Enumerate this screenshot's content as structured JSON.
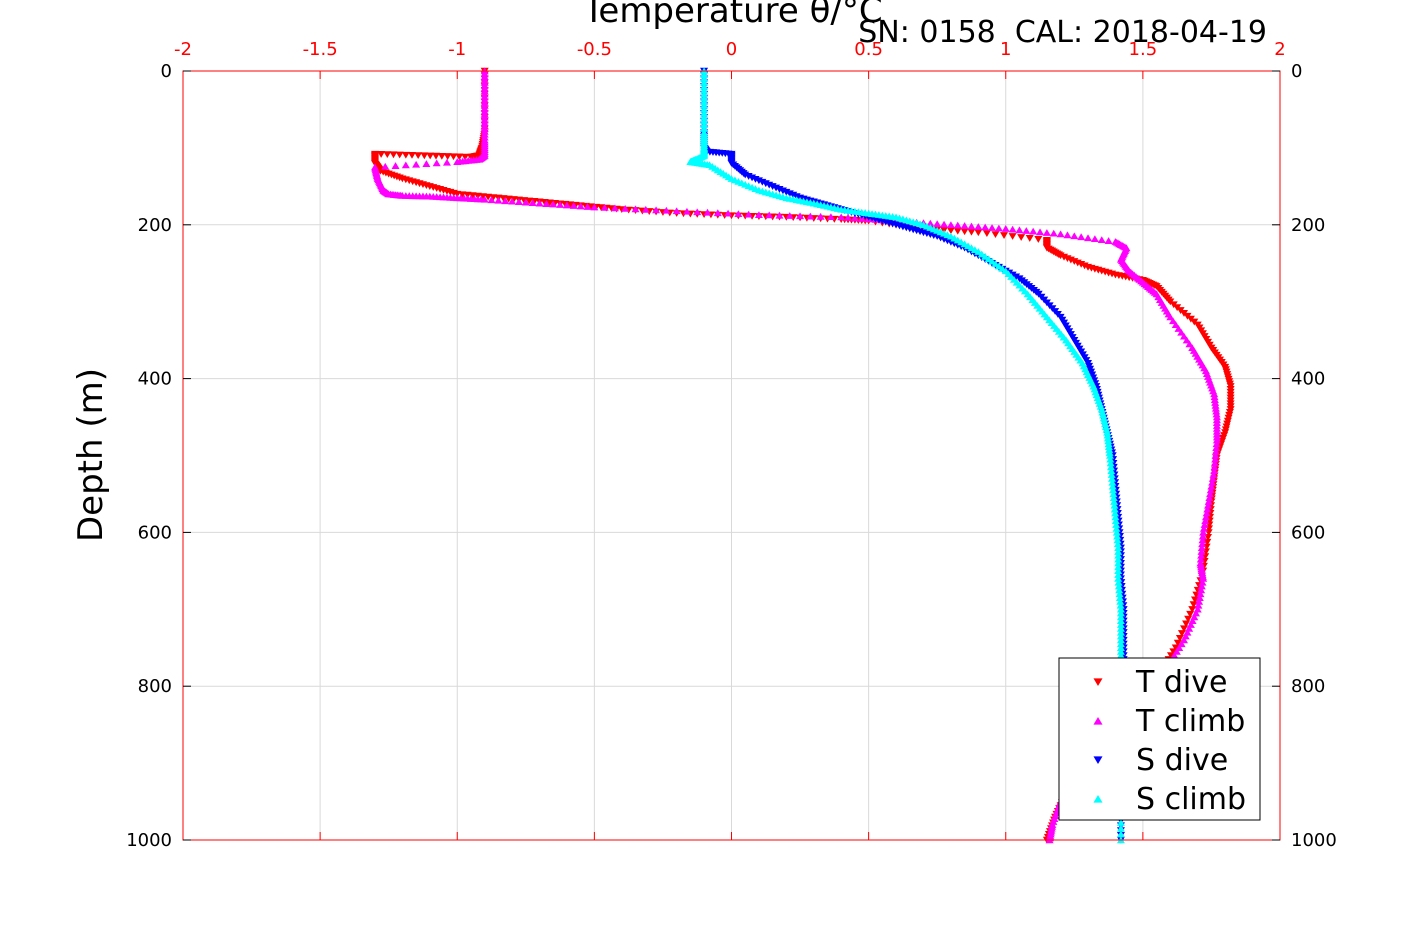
{
  "colors": {
    "axis_top": "#ff0000",
    "axis_side": "#000000",
    "grid": "#d9d9d9",
    "t_dive": "#ff0000",
    "t_climb": "#ff00ff",
    "s_dive": "#0000ff",
    "s_climb": "#00ffff"
  },
  "caption": "SN: 0158  CAL: 2018-04-19",
  "chart_data": {
    "type": "scatter",
    "title": "",
    "xlabel": "Temperature θ/°C",
    "ylabel": "Depth (m)",
    "xlim": [
      -2,
      2
    ],
    "ylim": [
      0,
      1000
    ],
    "y_reversed": true,
    "x_axis_position": "top",
    "x_ticks": [
      -2,
      -1.5,
      -1,
      -0.5,
      0,
      0.5,
      1,
      1.5,
      2
    ],
    "x_tick_labels": [
      "-2",
      "-1.5",
      "-1",
      "-0.5",
      "0",
      "0.5",
      "1",
      "1.5",
      "2"
    ],
    "y_ticks": [
      0,
      200,
      400,
      600,
      800,
      1000
    ],
    "y_tick_labels": [
      "0",
      "200",
      "400",
      "600",
      "800",
      "1000"
    ],
    "grid": true,
    "legend_position": "bottom-right",
    "series": [
      {
        "name": "T dive",
        "marker": "triangle-down",
        "x": [
          -0.9,
          -0.9,
          -0.9,
          -0.91,
          -0.92,
          -0.95,
          -1.12,
          -1.3,
          -1.3,
          -1.28,
          -1.2,
          -1.1,
          -1.0,
          -0.85,
          -0.7,
          -0.55,
          -0.4,
          -0.2,
          0.0,
          0.2,
          0.4,
          0.5,
          0.7,
          0.9,
          1.15,
          1.15,
          1.2,
          1.3,
          1.4,
          1.5,
          1.55,
          1.6,
          1.7,
          1.75,
          1.8,
          1.82,
          1.82,
          1.8,
          1.77,
          1.76,
          1.75,
          1.74,
          1.72,
          1.68,
          1.62,
          1.55,
          1.5,
          1.42,
          1.35,
          1.28,
          1.22,
          1.18,
          1.15
        ],
        "y": [
          0,
          40,
          80,
          100,
          110,
          112,
          110,
          108,
          120,
          130,
          140,
          150,
          160,
          165,
          170,
          175,
          180,
          185,
          188,
          190,
          193,
          195,
          205,
          210,
          220,
          230,
          240,
          255,
          265,
          272,
          280,
          300,
          330,
          360,
          385,
          410,
          440,
          470,
          500,
          530,
          560,
          600,
          650,
          700,
          750,
          790,
          820,
          850,
          880,
          910,
          940,
          970,
          1000
        ]
      },
      {
        "name": "T climb",
        "marker": "triangle-up",
        "x": [
          -0.9,
          -0.9,
          -0.9,
          -0.9,
          -0.9,
          -0.92,
          -1.0,
          -1.3,
          -1.29,
          -1.27,
          -1.25,
          -1.2,
          -1.1,
          -1.0,
          -0.9,
          -0.7,
          -0.5,
          -0.2,
          0.1,
          0.4,
          0.6,
          0.8,
          1.0,
          1.2,
          1.4,
          1.44,
          1.42,
          1.45,
          1.5,
          1.55,
          1.6,
          1.68,
          1.73,
          1.76,
          1.77,
          1.77,
          1.76,
          1.74,
          1.72,
          1.71,
          1.72,
          1.7,
          1.65,
          1.58,
          1.5,
          1.42,
          1.35,
          1.3,
          1.25,
          1.2,
          1.17,
          1.16
        ],
        "y": [
          0,
          30,
          60,
          90,
          110,
          115,
          118,
          125,
          140,
          155,
          160,
          162,
          163,
          165,
          167,
          172,
          177,
          182,
          187,
          190,
          195,
          200,
          205,
          212,
          222,
          230,
          245,
          260,
          275,
          290,
          320,
          360,
          390,
          420,
          450,
          480,
          520,
          560,
          600,
          640,
          660,
          700,
          740,
          780,
          800,
          830,
          860,
          890,
          920,
          950,
          980,
          1000
        ]
      },
      {
        "name": "S dive",
        "marker": "triangle-down",
        "x": [
          -0.1,
          -0.1,
          -0.1,
          -0.1,
          -0.09,
          0.0,
          0.0,
          0.05,
          0.15,
          0.25,
          0.35,
          0.45,
          0.55,
          0.65,
          0.75,
          0.85,
          0.95,
          1.05,
          1.12,
          1.2,
          1.25,
          1.3,
          1.33,
          1.35,
          1.37,
          1.39,
          1.4,
          1.41,
          1.42,
          1.42,
          1.43,
          1.43,
          1.43,
          1.43,
          1.43,
          1.42,
          1.42,
          1.42
        ],
        "y": [
          0,
          40,
          80,
          100,
          105,
          108,
          120,
          135,
          150,
          165,
          175,
          185,
          195,
          205,
          215,
          230,
          250,
          270,
          290,
          320,
          350,
          380,
          410,
          440,
          470,
          500,
          540,
          580,
          620,
          660,
          700,
          740,
          780,
          820,
          860,
          900,
          950,
          1000
        ]
      },
      {
        "name": "S climb",
        "marker": "triangle-up",
        "x": [
          -0.1,
          -0.1,
          -0.1,
          -0.1,
          -0.1,
          -0.13,
          -0.15,
          -0.08,
          0.0,
          0.1,
          0.2,
          0.3,
          0.4,
          0.5,
          0.6,
          0.7,
          0.8,
          0.9,
          1.0,
          1.08,
          1.15,
          1.22,
          1.28,
          1.32,
          1.35,
          1.37,
          1.38,
          1.39,
          1.4,
          1.41,
          1.41,
          1.42,
          1.42,
          1.42,
          1.42,
          1.42,
          1.42,
          1.42
        ],
        "y": [
          0,
          40,
          80,
          100,
          110,
          115,
          118,
          122,
          140,
          155,
          165,
          172,
          180,
          185,
          190,
          200,
          215,
          235,
          260,
          290,
          320,
          350,
          380,
          410,
          440,
          470,
          500,
          540,
          580,
          620,
          660,
          700,
          740,
          780,
          820,
          880,
          940,
          1000
        ]
      }
    ]
  }
}
